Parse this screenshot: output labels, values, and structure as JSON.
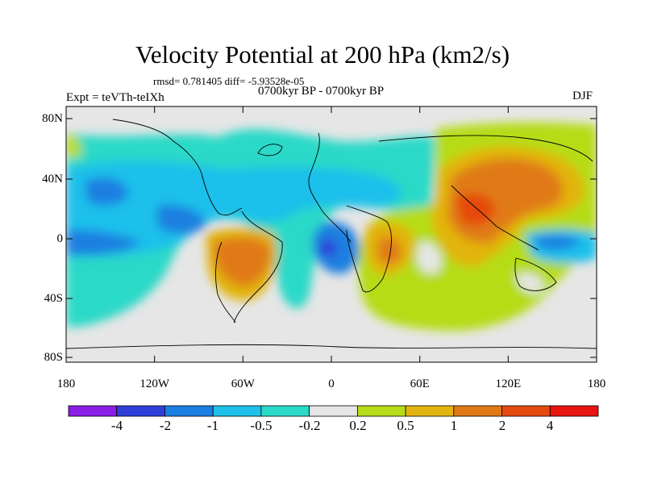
{
  "figure": {
    "title": "Velocity Potential at 200 hPa (km2/s)",
    "stats": "rmsd= 0.781405 diff= -5.93528e-05",
    "period": "0700kyr BP - 0700kyr BP",
    "experiment": "Expt = teVTh-teIXh",
    "season": "DJF"
  },
  "axes": {
    "y_ticks": [
      "80N",
      "40N",
      "0",
      "40S",
      "80S"
    ],
    "x_ticks": [
      "180",
      "120W",
      "60W",
      "0",
      "60E",
      "120E",
      "180"
    ]
  },
  "colorbar": {
    "labels": [
      "-4",
      "-2",
      "-1",
      "-0.5",
      "-0.2",
      "0.2",
      "0.5",
      "1",
      "2",
      "4"
    ],
    "colors": [
      "#8a1de6",
      "#2f3fd9",
      "#1a7fe0",
      "#1fc0ea",
      "#2ad9c8",
      "#e6e6e6",
      "#b6dc17",
      "#e2b40f",
      "#e07a14",
      "#e54a10",
      "#e8140f"
    ]
  }
}
